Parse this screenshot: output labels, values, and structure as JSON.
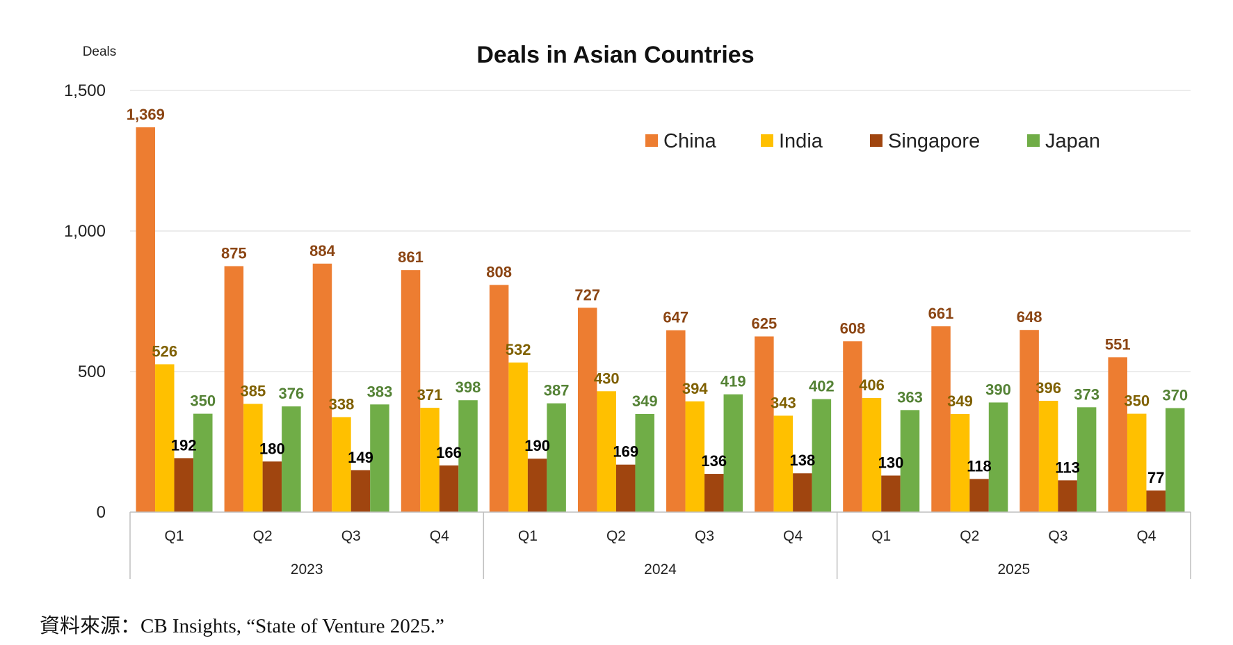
{
  "chart_data": {
    "type": "bar",
    "title": "Deals in Asian Countries",
    "ylabel": "Deals",
    "ylim": [
      0,
      1500
    ],
    "yticks": [
      "0",
      "500",
      "1,000",
      "1,500"
    ],
    "ytick_values": [
      0,
      500,
      1000,
      1500
    ],
    "grid": true,
    "legend_position": "top-right",
    "categories": [
      "Q1",
      "Q2",
      "Q3",
      "Q4",
      "Q1",
      "Q2",
      "Q3",
      "Q4",
      "Q1",
      "Q2",
      "Q3",
      "Q4"
    ],
    "groups": [
      "2023",
      "2024",
      "2025"
    ],
    "series": [
      {
        "name": "China",
        "color": "#ED7D31",
        "label_color": "#8B4513",
        "values": [
          1369,
          875,
          884,
          861,
          808,
          727,
          647,
          625,
          608,
          661,
          648,
          551
        ],
        "labels": [
          "1,369",
          "875",
          "884",
          "861",
          "808",
          "727",
          "647",
          "625",
          "608",
          "661",
          "648",
          "551"
        ]
      },
      {
        "name": "India",
        "color": "#FFC000",
        "label_color": "#7F6000",
        "values": [
          526,
          385,
          338,
          371,
          532,
          430,
          394,
          343,
          406,
          349,
          396,
          350
        ],
        "labels": [
          "526",
          "385",
          "338",
          "371",
          "532",
          "430",
          "394",
          "343",
          "406",
          "349",
          "396",
          "350"
        ]
      },
      {
        "name": "Singapore",
        "color": "#A0450F",
        "label_color": "#000000",
        "values": [
          192,
          180,
          149,
          166,
          190,
          169,
          136,
          138,
          130,
          118,
          113,
          77
        ],
        "labels": [
          "192",
          "180",
          "149",
          "166",
          "190",
          "169",
          "136",
          "138",
          "130",
          "118",
          "113",
          "77"
        ]
      },
      {
        "name": "Japan",
        "color": "#70AD47",
        "label_color": "#548235",
        "values": [
          350,
          376,
          383,
          398,
          387,
          349,
          419,
          402,
          363,
          390,
          373,
          370
        ],
        "labels": [
          "350",
          "376",
          "383",
          "398",
          "387",
          "349",
          "419",
          "402",
          "363",
          "390",
          "373",
          "370"
        ]
      }
    ]
  },
  "source_note": "資料來源：CB Insights, “State of Venture 2025.”"
}
